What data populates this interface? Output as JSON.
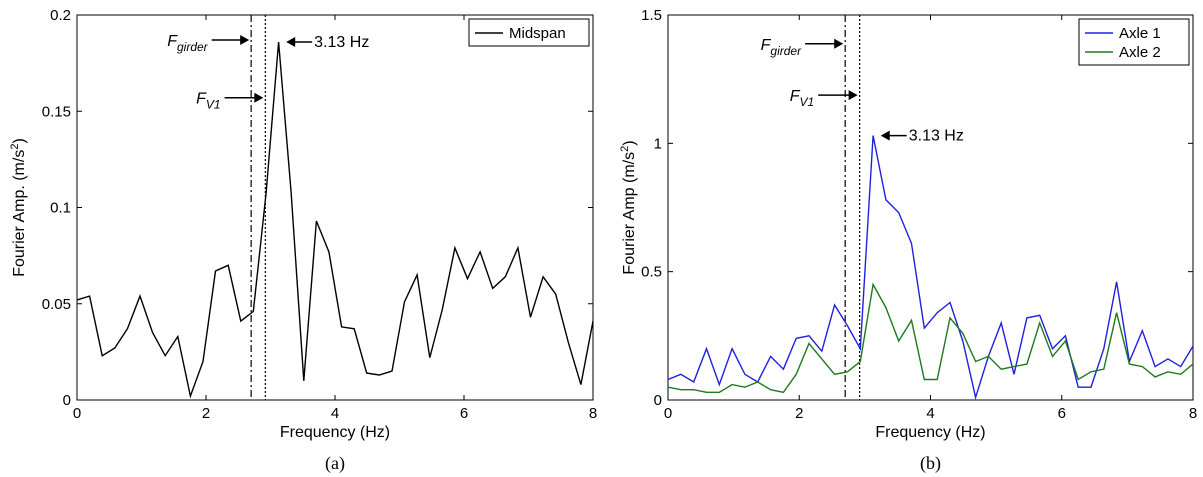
{
  "chart_data": [
    {
      "type": "line",
      "caption": "(a)",
      "xlabel": "Frequency (Hz)",
      "ylabel": "Fourier Amp. (m/s",
      "ylabel_sup": "2",
      "ylabel_end": ")",
      "xlim": [
        0,
        8
      ],
      "ylim": [
        0,
        0.2
      ],
      "xticks": [
        0,
        2,
        4,
        6,
        8
      ],
      "xtick_labels": [
        "0",
        "2",
        "4",
        "6",
        "8"
      ],
      "yticks": [
        0,
        0.05,
        0.1,
        0.15,
        0.2
      ],
      "ytick_labels": [
        "0",
        "0.05",
        "0.1",
        "0.15",
        "0.2"
      ],
      "grid": false,
      "legend": "top-right",
      "series": [
        {
          "name": "Midspan",
          "color": "#000000",
          "x": [
            0,
            0.195,
            0.391,
            0.586,
            0.781,
            0.977,
            1.172,
            1.367,
            1.563,
            1.758,
            1.953,
            2.148,
            2.344,
            2.539,
            2.734,
            2.93,
            3.125,
            3.32,
            3.516,
            3.711,
            3.906,
            4.102,
            4.297,
            4.492,
            4.688,
            4.883,
            5.078,
            5.273,
            5.469,
            5.664,
            5.859,
            6.055,
            6.25,
            6.445,
            6.641,
            6.836,
            7.031,
            7.227,
            7.422,
            7.617,
            7.813,
            8.0
          ],
          "y": [
            0.052,
            0.054,
            0.023,
            0.027,
            0.037,
            0.054,
            0.035,
            0.023,
            0.033,
            0.002,
            0.02,
            0.067,
            0.07,
            0.041,
            0.046,
            0.107,
            0.186,
            0.108,
            0.01,
            0.093,
            0.077,
            0.038,
            0.037,
            0.014,
            0.013,
            0.015,
            0.051,
            0.065,
            0.022,
            0.047,
            0.079,
            0.063,
            0.077,
            0.058,
            0.064,
            0.079,
            0.043,
            0.064,
            0.055,
            0.03,
            0.008,
            0.041
          ]
        }
      ],
      "vlines": [
        {
          "x": 2.7,
          "style": "dashdot"
        },
        {
          "x": 2.92,
          "style": "dotted"
        }
      ],
      "annotations": [
        {
          "main": "F",
          "sub": "girder",
          "x": 2.15,
          "y": 0.186
        },
        {
          "main": "F",
          "sub": "V1",
          "x": 2.35,
          "y": 0.156
        },
        {
          "main": "3.13 Hz",
          "sub": "",
          "x": 3.15,
          "y": 0.186
        }
      ]
    },
    {
      "type": "line",
      "caption": "(b)",
      "xlabel": "Frequency (Hz)",
      "ylabel": "Fourier Amp (m/s",
      "ylabel_sup": "2",
      "ylabel_end": ")",
      "xlim": [
        0,
        8
      ],
      "ylim": [
        0,
        1.5
      ],
      "xticks": [
        0,
        2,
        4,
        6,
        8
      ],
      "xtick_labels": [
        "0",
        "2",
        "4",
        "6",
        "8"
      ],
      "yticks": [
        0,
        0.5,
        1,
        1.5
      ],
      "ytick_labels": [
        "0",
        "0.5",
        "1",
        "1.5"
      ],
      "grid": false,
      "legend": "top-right",
      "series": [
        {
          "name": "Axle 1",
          "color": "#2020e0",
          "x": [
            0,
            0.195,
            0.391,
            0.586,
            0.781,
            0.977,
            1.172,
            1.367,
            1.563,
            1.758,
            1.953,
            2.148,
            2.344,
            2.539,
            2.734,
            2.93,
            3.125,
            3.32,
            3.516,
            3.711,
            3.906,
            4.102,
            4.297,
            4.492,
            4.688,
            4.883,
            5.078,
            5.273,
            5.469,
            5.664,
            5.859,
            6.055,
            6.25,
            6.445,
            6.641,
            6.836,
            7.031,
            7.227,
            7.422,
            7.617,
            7.813,
            8.0
          ],
          "y": [
            0.08,
            0.1,
            0.07,
            0.2,
            0.06,
            0.2,
            0.1,
            0.07,
            0.17,
            0.12,
            0.24,
            0.25,
            0.19,
            0.37,
            0.29,
            0.2,
            1.03,
            0.78,
            0.73,
            0.61,
            0.28,
            0.34,
            0.38,
            0.23,
            0.01,
            0.17,
            0.3,
            0.1,
            0.32,
            0.33,
            0.2,
            0.25,
            0.05,
            0.05,
            0.2,
            0.46,
            0.15,
            0.27,
            0.13,
            0.16,
            0.13,
            0.21
          ]
        },
        {
          "name": "Axle 2",
          "color": "#1f7a1f",
          "x": [
            0,
            0.195,
            0.391,
            0.586,
            0.781,
            0.977,
            1.172,
            1.367,
            1.563,
            1.758,
            1.953,
            2.148,
            2.344,
            2.539,
            2.734,
            2.93,
            3.125,
            3.32,
            3.516,
            3.711,
            3.906,
            4.102,
            4.297,
            4.492,
            4.688,
            4.883,
            5.078,
            5.273,
            5.469,
            5.664,
            5.859,
            6.055,
            6.25,
            6.445,
            6.641,
            6.836,
            7.031,
            7.227,
            7.422,
            7.617,
            7.813,
            8.0
          ],
          "y": [
            0.05,
            0.04,
            0.04,
            0.03,
            0.03,
            0.06,
            0.05,
            0.07,
            0.04,
            0.03,
            0.1,
            0.22,
            0.16,
            0.1,
            0.11,
            0.15,
            0.45,
            0.36,
            0.23,
            0.31,
            0.08,
            0.08,
            0.32,
            0.26,
            0.15,
            0.17,
            0.12,
            0.13,
            0.14,
            0.3,
            0.17,
            0.23,
            0.08,
            0.11,
            0.12,
            0.34,
            0.14,
            0.13,
            0.09,
            0.11,
            0.1,
            0.14
          ]
        }
      ],
      "vlines": [
        {
          "x": 2.7,
          "style": "dashdot"
        },
        {
          "x": 2.92,
          "style": "dotted"
        }
      ],
      "annotations": [
        {
          "main": "F",
          "sub": "girder",
          "x": 2.15,
          "y": 1.38
        },
        {
          "main": "F",
          "sub": "V1",
          "x": 2.35,
          "y": 1.18
        },
        {
          "main": "3.13 Hz",
          "sub": "",
          "x": 3.15,
          "y": 1.03
        }
      ]
    }
  ]
}
